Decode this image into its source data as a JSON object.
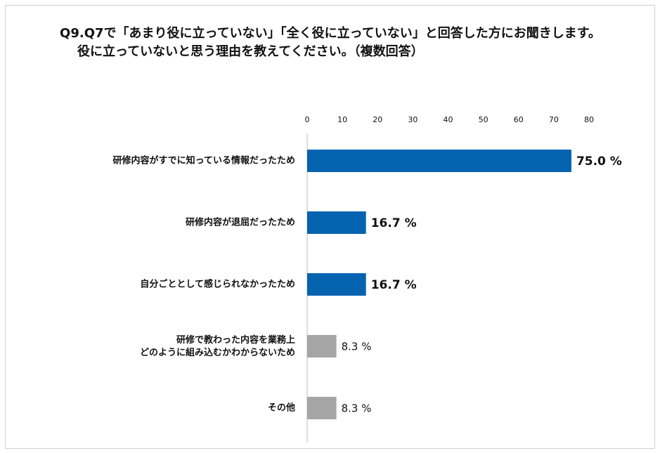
{
  "chart_data": {
    "type": "bar",
    "orientation": "horizontal",
    "title": [
      "Q9.Q7で「あまり役に立っていない」「全く役に立っていない」と回答した方にお聞きします。",
      "役に立っていないと思う理由を教えてください。（複数回答）"
    ],
    "categories": [
      "研修内容がすでに知っている情報だったため",
      "研修内容が退屈だったため",
      "自分ごととして感じられなかったため",
      "研修で教わった内容を業務上\nどのように組み込むかわからないため",
      "その他"
    ],
    "values": [
      75.0,
      16.7,
      16.7,
      8.3,
      8.3
    ],
    "value_labels": [
      "75.0 %",
      "16.7 %",
      "16.7 %",
      "8.3 %",
      "8.3 %"
    ],
    "colors": [
      "#0563b0",
      "#0563b0",
      "#0563b0",
      "#a5a5a5",
      "#a5a5a5"
    ],
    "xlim": [
      0,
      80
    ],
    "xticks": [
      0,
      10,
      20,
      30,
      40,
      50,
      60,
      70,
      80
    ],
    "grid": false
  }
}
